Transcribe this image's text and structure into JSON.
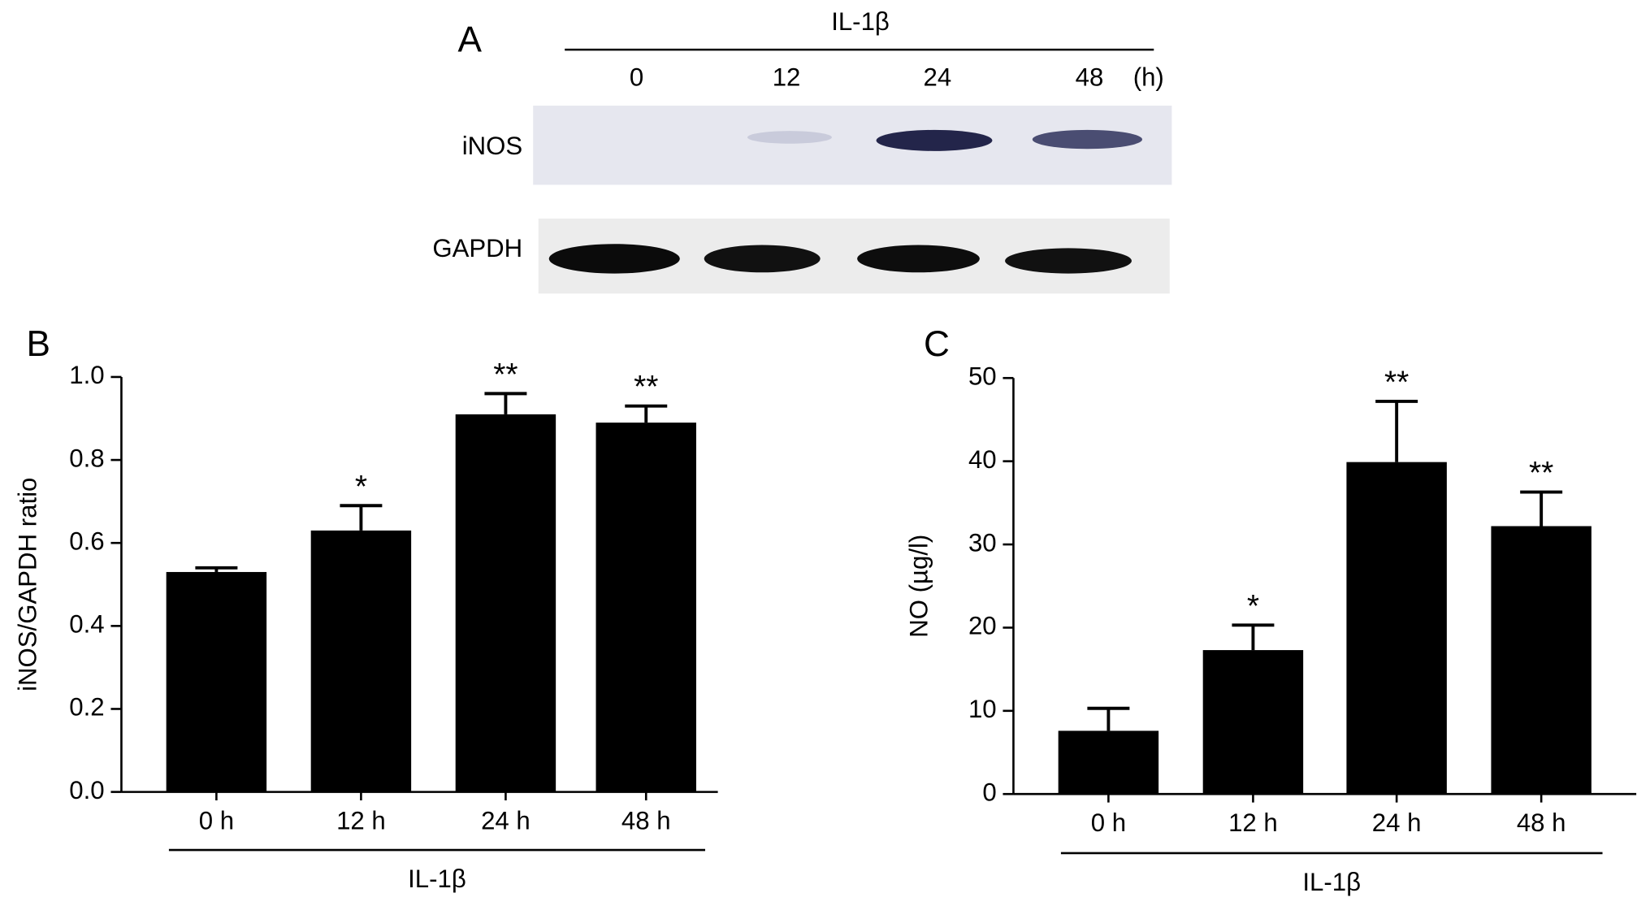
{
  "blot": {
    "panel": "A",
    "treatment": "IL-1β",
    "lanes": [
      "0",
      "12",
      "24",
      "48"
    ],
    "unit": "(h)",
    "rows": [
      "iNOS",
      "GAPDH"
    ]
  },
  "chart_data": [
    {
      "type": "bar",
      "panel": "B",
      "y_label": "iNOS/GAPDH ratio",
      "group_label": "IL-1β",
      "categories": [
        "0 h",
        "12 h",
        "24 h",
        "48 h"
      ],
      "values": [
        0.53,
        0.63,
        0.91,
        0.89
      ],
      "errors": [
        0.01,
        0.06,
        0.05,
        0.04
      ],
      "annotations": [
        null,
        "*",
        "**",
        "**"
      ],
      "color": "#000000",
      "ylim": [
        0,
        1
      ],
      "yticks": [
        {
          "value": 0,
          "label": "0.0"
        },
        0.2,
        0.4,
        0.6,
        0.8,
        {
          "value": 1,
          "label": "1.0"
        }
      ]
    },
    {
      "type": "bar",
      "panel": "C",
      "y_label": "NO (µg/l)",
      "group_label": "IL-1β",
      "categories": [
        "0 h",
        "12 h",
        "24 h",
        "48 h"
      ],
      "values": [
        7.6,
        17.3,
        39.9,
        32.2
      ],
      "errors": [
        2.7,
        3.0,
        7.3,
        4.1
      ],
      "annotations": [
        null,
        "*",
        "**",
        "**"
      ],
      "color": "#000000",
      "ylim": [
        0,
        50
      ],
      "yticks": [
        0,
        10,
        20,
        30,
        40,
        50
      ]
    }
  ]
}
